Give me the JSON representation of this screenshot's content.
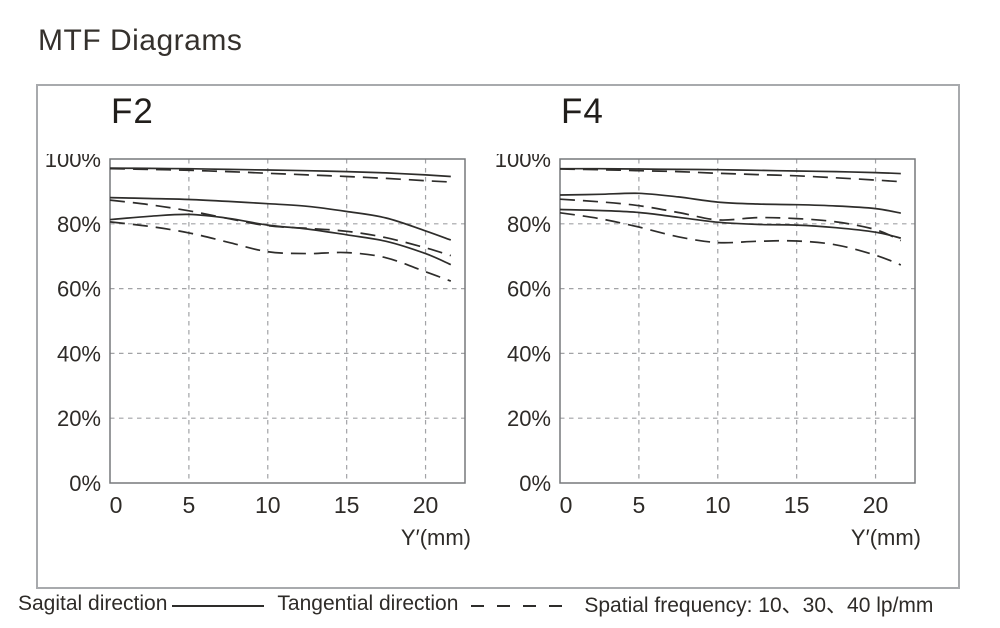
{
  "page_title": "MTF Diagrams",
  "colors": {
    "curve": "#2e2d2b",
    "grid": "#a2a3a6",
    "plot_border": "#77787b",
    "frame_border": "#a8aaad",
    "text": "#2e2b28"
  },
  "legend": {
    "sagittal_label": "Sagital direction",
    "tangential_label": "Tangential direction",
    "spatial_frequency_label": "Spatial frequency: 10、30、40 lp/mm"
  },
  "chart_data": [
    {
      "type": "line",
      "title": "F2",
      "xlabel": "Y′(mm)",
      "ylabel": "",
      "grid": true,
      "xlim": [
        0,
        22.5
      ],
      "ylim": [
        0,
        100
      ],
      "x_ticks": [
        {
          "value": 0,
          "label": "0"
        },
        {
          "value": 5,
          "label": "5"
        },
        {
          "value": 10,
          "label": "10"
        },
        {
          "value": 15,
          "label": "15"
        },
        {
          "value": 20,
          "label": "20"
        }
      ],
      "y_ticks": [
        {
          "value": 0,
          "label": "0%"
        },
        {
          "value": 20,
          "label": "20%"
        },
        {
          "value": 40,
          "label": "40%"
        },
        {
          "value": 60,
          "label": "60%"
        },
        {
          "value": 80,
          "label": "80%"
        },
        {
          "value": 100,
          "label": "100%"
        }
      ],
      "x": [
        0,
        2.5,
        5,
        7.5,
        10,
        12.5,
        15,
        17.5,
        20,
        21.6
      ],
      "series": [
        {
          "name": "Sagittal 10 lp/mm",
          "style": "solid",
          "values": [
            97.2,
            97.1,
            97.0,
            96.8,
            96.6,
            96.4,
            96.1,
            95.7,
            95.1,
            94.6
          ]
        },
        {
          "name": "Tangential 10 lp/mm",
          "style": "dashed",
          "values": [
            97.0,
            96.8,
            96.5,
            96.1,
            95.6,
            95.1,
            94.6,
            94.0,
            93.3,
            92.9
          ]
        },
        {
          "name": "Sagittal 30 lp/mm",
          "style": "solid",
          "values": [
            88.1,
            87.8,
            87.5,
            86.9,
            86.2,
            85.4,
            83.8,
            81.8,
            77.8,
            75.0
          ]
        },
        {
          "name": "Tangential 30 lp/mm",
          "style": "dashed",
          "values": [
            87.3,
            85.9,
            84.0,
            81.6,
            79.4,
            78.6,
            77.7,
            75.7,
            72.6,
            70.2
          ]
        },
        {
          "name": "Sagittal 40 lp/mm",
          "style": "solid",
          "values": [
            81.3,
            82.3,
            82.9,
            81.7,
            79.6,
            78.4,
            76.6,
            74.6,
            70.8,
            67.4
          ]
        },
        {
          "name": "Tangential 40 lp/mm",
          "style": "dashed",
          "values": [
            80.6,
            79.2,
            77.2,
            74.3,
            71.4,
            70.8,
            71.1,
            69.5,
            65.2,
            62.3
          ]
        }
      ]
    },
    {
      "type": "line",
      "title": "F4",
      "xlabel": "Y′(mm)",
      "ylabel": "",
      "grid": true,
      "xlim": [
        0,
        22.5
      ],
      "ylim": [
        0,
        100
      ],
      "x_ticks": [
        {
          "value": 0,
          "label": "0"
        },
        {
          "value": 5,
          "label": "5"
        },
        {
          "value": 10,
          "label": "10"
        },
        {
          "value": 15,
          "label": "15"
        },
        {
          "value": 20,
          "label": "20"
        }
      ],
      "y_ticks": [
        {
          "value": 0,
          "label": "0%"
        },
        {
          "value": 20,
          "label": "20%"
        },
        {
          "value": 40,
          "label": "40%"
        },
        {
          "value": 60,
          "label": "60%"
        },
        {
          "value": 80,
          "label": "80%"
        },
        {
          "value": 100,
          "label": "100%"
        }
      ],
      "x": [
        0,
        2.5,
        5,
        7.5,
        10,
        12.5,
        15,
        17.5,
        20,
        21.6
      ],
      "series": [
        {
          "name": "Sagittal 10 lp/mm",
          "style": "solid",
          "values": [
            97.0,
            97.0,
            96.9,
            96.8,
            96.7,
            96.5,
            96.3,
            96.1,
            95.8,
            95.5
          ]
        },
        {
          "name": "Tangential 10 lp/mm",
          "style": "dashed",
          "values": [
            96.9,
            96.7,
            96.4,
            96.1,
            95.6,
            95.2,
            94.8,
            94.2,
            93.5,
            93.0
          ]
        },
        {
          "name": "Sagittal 30 lp/mm",
          "style": "solid",
          "values": [
            88.9,
            89.1,
            89.4,
            88.3,
            86.7,
            86.1,
            85.9,
            85.5,
            84.7,
            83.3
          ]
        },
        {
          "name": "Tangential 30 lp/mm",
          "style": "dashed",
          "values": [
            87.6,
            86.8,
            85.6,
            83.5,
            81.2,
            81.9,
            81.6,
            80.6,
            78.2,
            74.8
          ]
        },
        {
          "name": "Sagittal 40 lp/mm",
          "style": "solid",
          "values": [
            84.4,
            84.1,
            83.5,
            82.0,
            80.5,
            79.8,
            79.6,
            78.8,
            77.4,
            75.6
          ]
        },
        {
          "name": "Tangential 40 lp/mm",
          "style": "dashed",
          "values": [
            83.4,
            81.6,
            79.0,
            76.0,
            74.2,
            74.6,
            74.7,
            73.5,
            70.3,
            67.3
          ]
        }
      ]
    }
  ]
}
